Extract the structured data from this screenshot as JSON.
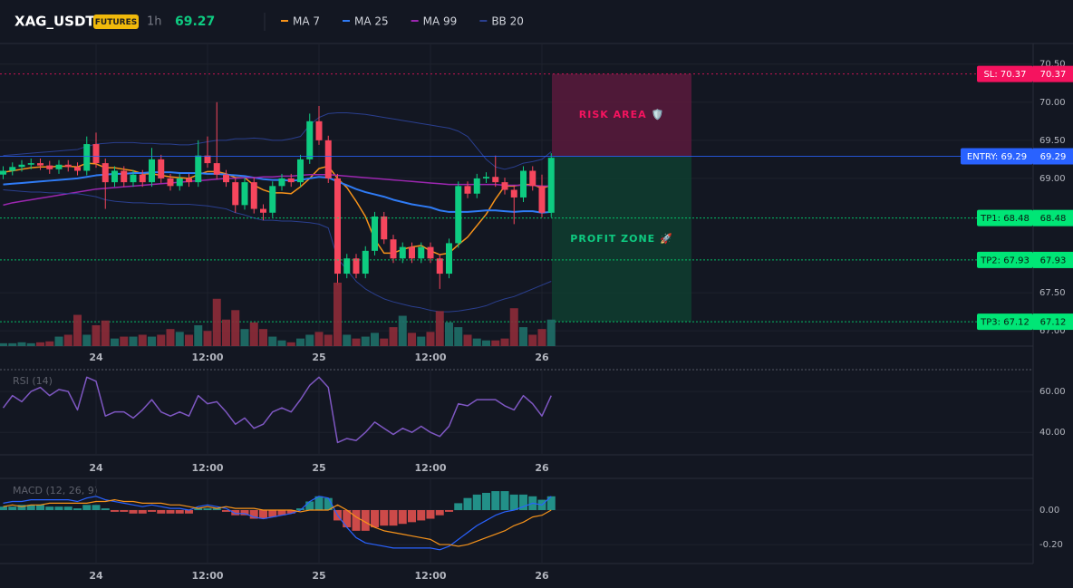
{
  "header": {
    "symbol": "XAG_USDT",
    "badge": "FUTURES",
    "interval": "1h",
    "price": 69.27
  },
  "chart_data": [
    {
      "type": "candlestick",
      "categories": [
        null,
        null,
        null,
        null,
        null,
        null,
        null,
        null,
        null,
        null,
        "24",
        null,
        null,
        null,
        null,
        null,
        null,
        null,
        null,
        null,
        null,
        null,
        "12:00",
        null,
        null,
        null,
        null,
        null,
        null,
        null,
        null,
        null,
        null,
        null,
        "25",
        null,
        null,
        null,
        null,
        null,
        null,
        null,
        null,
        null,
        null,
        null,
        "12:00",
        null,
        null,
        null,
        null,
        null,
        null,
        null,
        null,
        null,
        null,
        null,
        "26",
        null
      ],
      "open": [
        69.05,
        69.1,
        69.15,
        69.18,
        69.2,
        69.17,
        69.12,
        69.18,
        69.15,
        69.1,
        69.45,
        69.2,
        68.95,
        69.1,
        68.95,
        69.05,
        68.95,
        69.25,
        69.0,
        68.9,
        69.0,
        68.95,
        69.3,
        69.2,
        69.05,
        68.95,
        68.65,
        68.95,
        68.6,
        68.55,
        68.9,
        69.0,
        68.95,
        69.25,
        69.75,
        69.5,
        69.0,
        67.75,
        67.95,
        67.75,
        68.05,
        68.5,
        68.2,
        67.95,
        68.1,
        67.95,
        68.1,
        67.95,
        67.75,
        68.15,
        68.9,
        68.8,
        69.0,
        69.02,
        68.95,
        68.85,
        68.75,
        69.1,
        68.9,
        68.55
      ],
      "high": [
        69.16,
        69.21,
        69.24,
        69.26,
        69.26,
        69.23,
        69.24,
        69.24,
        69.21,
        69.55,
        69.6,
        69.26,
        69.16,
        69.16,
        69.11,
        69.11,
        69.4,
        69.31,
        69.06,
        69.06,
        69.06,
        69.5,
        69.55,
        70.0,
        69.11,
        69.01,
        69.01,
        69.01,
        68.66,
        68.96,
        69.06,
        69.06,
        69.31,
        69.85,
        69.95,
        69.56,
        69.06,
        68.01,
        68.01,
        68.11,
        68.56,
        68.56,
        68.26,
        68.16,
        68.16,
        68.16,
        68.16,
        68.01,
        68.21,
        68.96,
        68.96,
        69.06,
        69.08,
        69.3,
        69.01,
        68.91,
        69.16,
        69.16,
        69.05,
        69.33
      ],
      "low": [
        68.99,
        69.04,
        69.09,
        69.12,
        69.11,
        69.06,
        69.06,
        69.09,
        69.04,
        69.04,
        69.14,
        68.6,
        68.89,
        68.89,
        68.89,
        68.89,
        68.89,
        68.94,
        68.84,
        68.84,
        68.89,
        68.89,
        69.14,
        68.99,
        68.89,
        68.55,
        68.59,
        68.54,
        68.45,
        68.49,
        68.84,
        68.89,
        68.89,
        69.19,
        69.44,
        68.94,
        67.6,
        67.69,
        67.69,
        67.69,
        67.99,
        68.14,
        67.89,
        67.89,
        67.89,
        67.89,
        67.89,
        67.55,
        67.69,
        68.09,
        68.74,
        68.74,
        68.94,
        68.89,
        68.79,
        68.4,
        68.69,
        68.84,
        68.49,
        68.49
      ],
      "close": [
        69.1,
        69.15,
        69.18,
        69.2,
        69.17,
        69.12,
        69.18,
        69.15,
        69.1,
        69.45,
        69.2,
        68.95,
        69.1,
        68.95,
        69.05,
        68.95,
        69.25,
        69.0,
        68.9,
        69.0,
        68.95,
        69.3,
        69.2,
        69.05,
        68.95,
        68.65,
        68.95,
        68.6,
        68.55,
        68.9,
        69.0,
        68.95,
        69.25,
        69.75,
        69.5,
        69.0,
        67.75,
        67.95,
        67.75,
        68.05,
        68.5,
        68.2,
        67.95,
        68.1,
        67.95,
        68.1,
        67.95,
        67.75,
        68.15,
        68.9,
        68.8,
        69.0,
        69.02,
        68.95,
        68.85,
        68.75,
        69.1,
        68.9,
        68.55,
        69.27
      ],
      "up_color": "#0ecb81",
      "down_color": "#f6465d",
      "series": [
        {
          "name": "MA 7",
          "color": "#f7931a",
          "values": [
            69.08,
            69.1,
            69.12,
            69.14,
            69.15,
            69.15,
            69.16,
            69.16,
            69.15,
            69.2,
            69.19,
            69.14,
            69.14,
            69.12,
            69.1,
            69.06,
            69.06,
            69.04,
            69.02,
            69.01,
            69.0,
            69.05,
            69.09,
            69.09,
            69.06,
            69.01,
            69.01,
            68.91,
            68.85,
            68.81,
            68.81,
            68.8,
            68.89,
            69.0,
            69.13,
            69.16,
            69.0,
            68.88,
            68.7,
            68.5,
            68.2,
            68.02,
            68.02,
            68.07,
            68.1,
            68.12,
            68.05,
            68.0,
            68.02,
            68.13,
            68.23,
            68.38,
            68.53,
            68.73,
            68.9,
            68.9,
            68.92,
            68.92,
            68.87,
            68.91
          ]
        },
        {
          "name": "MA 25",
          "color": "#2f7bf5",
          "values": [
            68.92,
            68.93,
            68.94,
            68.95,
            68.96,
            68.97,
            68.98,
            68.99,
            69.0,
            69.02,
            69.04,
            69.05,
            69.06,
            69.06,
            69.07,
            69.07,
            69.08,
            69.08,
            69.08,
            69.07,
            69.07,
            69.07,
            69.06,
            69.06,
            69.05,
            69.04,
            69.03,
            69.01,
            68.99,
            68.98,
            68.98,
            68.97,
            68.98,
            69.0,
            69.02,
            69.01,
            68.96,
            68.91,
            68.86,
            68.82,
            68.79,
            68.76,
            68.72,
            68.69,
            68.66,
            68.64,
            68.62,
            68.58,
            68.56,
            68.56,
            68.56,
            68.57,
            68.58,
            68.58,
            68.57,
            68.56,
            68.57,
            68.57,
            68.55,
            68.56
          ]
        },
        {
          "name": "MA 99",
          "color": "#9c27b0",
          "values": [
            68.65,
            68.68,
            68.7,
            68.72,
            68.74,
            68.76,
            68.78,
            68.8,
            68.82,
            68.84,
            68.86,
            68.87,
            68.88,
            68.89,
            68.9,
            68.91,
            68.92,
            68.93,
            68.94,
            68.95,
            68.96,
            68.97,
            68.98,
            68.99,
            69.0,
            69.0,
            69.01,
            69.01,
            69.02,
            69.02,
            69.03,
            69.03,
            69.04,
            69.05,
            69.05,
            69.05,
            69.04,
            69.03,
            69.02,
            69.01,
            69.0,
            68.99,
            68.98,
            68.97,
            68.96,
            68.95,
            68.94,
            68.93,
            68.92,
            68.92,
            68.92,
            68.92,
            68.92,
            68.92,
            68.91,
            68.91,
            68.91,
            68.91,
            68.9,
            68.9
          ]
        },
        {
          "name": "BB 20",
          "color": "#2a3f8f",
          "upper": [
            69.3,
            69.31,
            69.32,
            69.33,
            69.34,
            69.35,
            69.36,
            69.37,
            69.38,
            69.42,
            69.45,
            69.46,
            69.47,
            69.47,
            69.47,
            69.46,
            69.46,
            69.45,
            69.45,
            69.44,
            69.44,
            69.46,
            69.48,
            69.5,
            69.5,
            69.52,
            69.52,
            69.53,
            69.52,
            69.5,
            69.5,
            69.52,
            69.55,
            69.7,
            69.8,
            69.85,
            69.86,
            69.86,
            69.85,
            69.84,
            69.82,
            69.8,
            69.78,
            69.76,
            69.74,
            69.72,
            69.7,
            69.68,
            69.66,
            69.62,
            69.55,
            69.4,
            69.25,
            69.15,
            69.12,
            69.15,
            69.2,
            69.22,
            69.25,
            69.35
          ],
          "lower": [
            68.85,
            68.84,
            68.83,
            68.82,
            68.82,
            68.81,
            68.81,
            68.8,
            68.8,
            68.78,
            68.76,
            68.72,
            68.7,
            68.69,
            68.68,
            68.68,
            68.67,
            68.67,
            68.66,
            68.66,
            68.66,
            68.65,
            68.64,
            68.62,
            68.6,
            68.55,
            68.52,
            68.48,
            68.45,
            68.45,
            68.44,
            68.44,
            68.43,
            68.42,
            68.4,
            68.35,
            67.95,
            67.8,
            67.65,
            67.55,
            67.48,
            67.42,
            67.38,
            67.35,
            67.32,
            67.3,
            67.27,
            67.25,
            67.25,
            67.26,
            67.28,
            67.3,
            67.33,
            67.38,
            67.42,
            67.45,
            67.5,
            67.55,
            67.6,
            67.65
          ]
        }
      ],
      "ylim": [
        66.8,
        70.77
      ],
      "yticks": [
        {
          "value": 70.5,
          "label": "70.50"
        },
        {
          "value": 70,
          "label": "70.00"
        },
        {
          "value": 69.5,
          "label": "69.50"
        },
        {
          "value": 69,
          "label": "69.00"
        },
        {
          "value": 67.5,
          "label": "67.50"
        },
        {
          "value": 67,
          "label": "67.00"
        }
      ],
      "levels": [
        {
          "label": "SL: 70.37",
          "value": 70.37,
          "color": "#f5135f"
        },
        {
          "label": "ENTRY: 69.29",
          "value": 69.29,
          "color": "#2962ff"
        },
        {
          "label": "TP1: 68.48",
          "value": 68.48,
          "color": "#00e676"
        },
        {
          "label": "TP2: 67.93",
          "value": 67.93,
          "color": "#00e676"
        },
        {
          "label": "TP3: 67.12",
          "value": 67.12,
          "color": "#00e676"
        }
      ],
      "zones": [
        {
          "label": "RISK AREA 🛡️",
          "from": 70.37,
          "to": 69.29,
          "color": "#5b1a3c",
          "text_color": "#f5135f"
        },
        {
          "label": "PROFIT ZONE 🚀",
          "from": 69.29,
          "to": 67.12,
          "color": "#0f3d2f",
          "text_color": "#0ecb81"
        }
      ]
    },
    {
      "type": "volume",
      "values": [
        3,
        3,
        4,
        3,
        4,
        5,
        10,
        12,
        33,
        12,
        22,
        27,
        8,
        10,
        10,
        12,
        10,
        12,
        18,
        15,
        12,
        22,
        16,
        50,
        28,
        38,
        18,
        25,
        18,
        10,
        6,
        4,
        8,
        12,
        15,
        12,
        67,
        12,
        8,
        10,
        14,
        8,
        20,
        32,
        14,
        10,
        15,
        37,
        25,
        20,
        12,
        8,
        6,
        6,
        8,
        40,
        20,
        12,
        18,
        28
      ]
    },
    {
      "type": "line",
      "title": "RSI (14)",
      "color": "#7e57c2",
      "values": [
        52,
        58,
        55,
        60,
        62,
        58,
        61,
        60,
        51,
        67,
        65,
        48,
        50,
        50,
        47,
        51,
        56,
        50,
        48,
        50,
        48,
        58,
        54,
        55,
        50,
        44,
        47,
        42,
        44,
        50,
        52,
        50,
        56,
        63,
        67,
        62,
        35,
        37,
        36,
        40,
        45,
        42,
        39,
        42,
        40,
        43,
        40,
        38,
        43,
        54,
        53,
        56,
        56,
        56,
        53,
        51,
        58,
        54,
        48,
        58
      ],
      "ylim": [
        29,
        70.7
      ],
      "yticks": [
        {
          "value": 60,
          "label": "60.00"
        },
        {
          "value": 40,
          "label": "40.00"
        }
      ]
    },
    {
      "type": "macd",
      "title": "MACD (12, 26, 9)",
      "histogram": [
        0.02,
        0.02,
        0.03,
        0.03,
        0.03,
        0.02,
        0.02,
        0.02,
        0.01,
        0.03,
        0.03,
        0.01,
        -0.01,
        -0.01,
        -0.02,
        -0.02,
        -0.01,
        -0.02,
        -0.02,
        -0.02,
        -0.02,
        0.01,
        0.01,
        0.01,
        -0.01,
        -0.03,
        -0.03,
        -0.05,
        -0.05,
        -0.04,
        -0.03,
        -0.02,
        0.01,
        0.05,
        0.08,
        0.07,
        -0.06,
        -0.1,
        -0.12,
        -0.12,
        -0.1,
        -0.09,
        -0.09,
        -0.08,
        -0.07,
        -0.06,
        -0.05,
        -0.03,
        -0.01,
        0.04,
        0.07,
        0.09,
        0.1,
        0.11,
        0.11,
        0.09,
        0.09,
        0.08,
        0.06,
        0.08
      ],
      "pos_color": "#26a69a",
      "neg_color": "#ef5350",
      "lines": [
        {
          "color": "#2962ff",
          "values": [
            0.04,
            0.05,
            0.05,
            0.06,
            0.06,
            0.06,
            0.06,
            0.06,
            0.05,
            0.07,
            0.08,
            0.06,
            0.05,
            0.04,
            0.03,
            0.02,
            0.03,
            0.02,
            0.01,
            0.01,
            0.0,
            0.02,
            0.03,
            0.02,
            0.01,
            -0.02,
            -0.02,
            -0.04,
            -0.05,
            -0.04,
            -0.03,
            -0.02,
            0.0,
            0.05,
            0.08,
            0.07,
            -0.03,
            -0.1,
            -0.16,
            -0.19,
            -0.2,
            -0.21,
            -0.22,
            -0.22,
            -0.22,
            -0.22,
            -0.22,
            -0.23,
            -0.21,
            -0.17,
            -0.13,
            -0.09,
            -0.06,
            -0.03,
            -0.01,
            0.0,
            0.02,
            0.04,
            0.03,
            0.08
          ]
        },
        {
          "color": "#f7931a",
          "values": [
            0.02,
            0.03,
            0.02,
            0.03,
            0.03,
            0.04,
            0.04,
            0.04,
            0.04,
            0.04,
            0.05,
            0.05,
            0.06,
            0.05,
            0.05,
            0.04,
            0.04,
            0.04,
            0.03,
            0.03,
            0.02,
            0.01,
            0.02,
            0.01,
            0.02,
            0.01,
            0.01,
            0.01,
            0.0,
            0.0,
            0.0,
            0.0,
            -0.01,
            0.0,
            0.0,
            0.0,
            0.03,
            0.0,
            -0.04,
            -0.07,
            -0.1,
            -0.12,
            -0.13,
            -0.14,
            -0.15,
            -0.16,
            -0.17,
            -0.2,
            -0.2,
            -0.21,
            -0.2,
            -0.18,
            -0.16,
            -0.14,
            -0.12,
            -0.09,
            -0.07,
            -0.04,
            -0.03,
            0.0
          ]
        }
      ],
      "ylim": [
        -0.31,
        0.184
      ],
      "yticks": [
        {
          "value": 0,
          "label": "0.00"
        },
        {
          "value": -0.2,
          "label": "-0.20"
        }
      ]
    }
  ]
}
